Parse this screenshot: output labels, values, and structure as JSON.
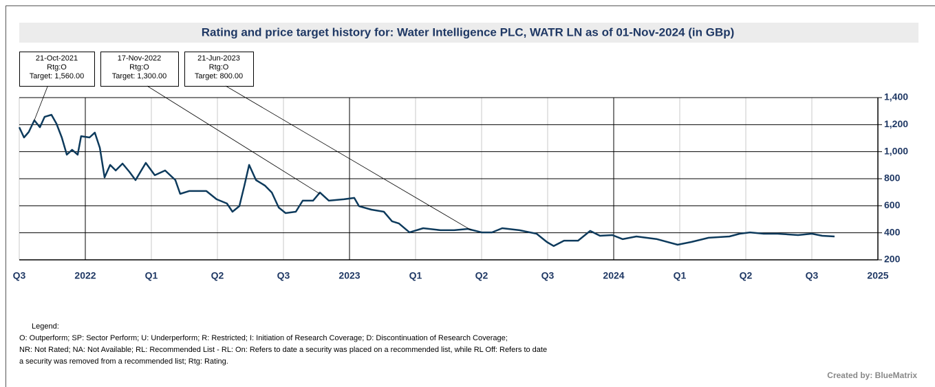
{
  "chart_data": {
    "type": "line",
    "title": "Rating and price target history for: Water Intelligence PLC, WATR LN as of 01-Nov-2024 (in GBp)",
    "x": [
      2021.75,
      2021.768,
      2021.786,
      2021.807,
      2021.828,
      2021.846,
      2021.872,
      2021.891,
      2021.911,
      2021.93,
      2021.95,
      2021.971,
      2021.984,
      2022.016,
      2022.036,
      2022.055,
      2022.073,
      2022.094,
      2022.115,
      2022.141,
      2022.167,
      2022.19,
      2022.229,
      2022.263,
      2022.302,
      2022.341,
      2022.359,
      2022.393,
      2022.458,
      2022.497,
      2022.536,
      2022.557,
      2022.583,
      2022.602,
      2022.62,
      2022.646,
      2022.68,
      2022.706,
      2022.732,
      2022.758,
      2022.797,
      2022.823,
      2022.862,
      2022.888,
      2022.922,
      2022.979,
      2023.018,
      2023.036,
      2023.083,
      2023.13,
      2023.161,
      2023.187,
      2023.227,
      2023.279,
      2023.344,
      2023.396,
      2023.448,
      2023.5,
      2023.539,
      2023.578,
      2023.643,
      2023.708,
      2023.747,
      2023.773,
      2023.812,
      2023.865,
      2023.911,
      2023.948,
      2023.995,
      2024.034,
      2024.086,
      2024.164,
      2024.242,
      2024.294,
      2024.359,
      2024.438,
      2024.477,
      2024.516,
      2024.568,
      2024.62,
      2024.698,
      2024.75,
      2024.789,
      2024.836
    ],
    "series": [
      {
        "color": "#0d3a5c",
        "values": [
          1181,
          1105,
          1146,
          1232,
          1181,
          1258,
          1273,
          1207,
          1105,
          978,
          1014,
          978,
          1115,
          1105,
          1141,
          1029,
          810,
          902,
          861,
          912,
          851,
          790,
          917,
          826,
          861,
          790,
          688,
          709,
          709,
          648,
          617,
          556,
          597,
          749,
          902,
          790,
          749,
          698,
          587,
          546,
          556,
          638,
          638,
          698,
          638,
          648,
          658,
          597,
          571,
          556,
          485,
          469,
          403,
          434,
          419,
          419,
          429,
          403,
          403,
          434,
          419,
          393,
          332,
          302,
          342,
          342,
          414,
          378,
          383,
          353,
          373,
          353,
          312,
          332,
          363,
          373,
          393,
          403,
          393,
          393,
          383,
          393,
          378,
          373
        ]
      }
    ],
    "xlim": [
      2021.75,
      2025.0
    ],
    "xticks": [
      {
        "value": 2021.75,
        "label": "Q3"
      },
      2022,
      {
        "value": 2022.25,
        "label": "Q1"
      },
      {
        "value": 2022.5,
        "label": "Q2"
      },
      {
        "value": 2022.75,
        "label": "Q3"
      },
      2023,
      {
        "value": 2023.25,
        "label": "Q1"
      },
      {
        "value": 2023.5,
        "label": "Q2"
      },
      {
        "value": 2023.75,
        "label": "Q3"
      },
      2024,
      {
        "value": 2024.25,
        "label": "Q1"
      },
      {
        "value": 2024.5,
        "label": "Q2"
      },
      {
        "value": 2024.75,
        "label": "Q3"
      },
      2025
    ],
    "ylim": [
      200,
      1400
    ],
    "yticks": [
      {
        "value": 200,
        "label": "200"
      },
      {
        "value": 400,
        "label": "400"
      },
      {
        "value": 600,
        "label": "600"
      },
      {
        "value": 800,
        "label": "800"
      },
      {
        "value": 1000,
        "label": "1,000"
      },
      {
        "value": 1200,
        "label": "1,200"
      },
      {
        "value": 1400,
        "label": "1,400"
      }
    ],
    "grid": true,
    "annotations": [
      {
        "lines": [
          "21-Oct-2021",
          "Rtg:O",
          "Target: 1,560.00"
        ],
        "x": 2021.807,
        "y": 1232
      },
      {
        "lines": [
          "17-Nov-2022",
          "Rtg:O",
          "Target: 1,300.00"
        ],
        "x": 2022.888,
        "y": 688
      },
      {
        "lines": [
          "21-Jun-2023",
          "Rtg:O",
          "Target: 800.00"
        ],
        "x": 2023.461,
        "y": 419
      }
    ],
    "legend_text": [
      "Legend:",
      "O: Outperform; SP: Sector Perform; U: Underperform; R: Restricted; I: Initiation of Research Coverage; D: Discontinuation of Research Coverage;",
      "NR: Not Rated; NA: Not Available; RL: Recommended List - RL: On: Refers to date a security was placed on a recommended list, while RL Off: Refers to date",
      "a security was removed from a recommended list; Rtg: Rating."
    ],
    "credit": "Created by: BlueMatrix"
  }
}
